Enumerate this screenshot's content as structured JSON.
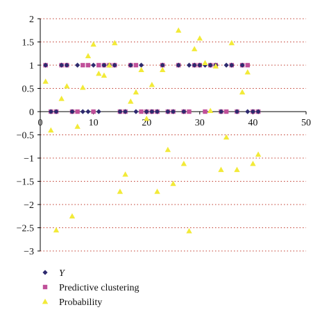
{
  "chart_data": {
    "type": "scatter",
    "title": "",
    "xlabel": "",
    "ylabel": "",
    "xlim": [
      0,
      50
    ],
    "ylim": [
      -3,
      2
    ],
    "x_ticks": [
      0,
      10,
      20,
      30,
      40,
      50
    ],
    "y_ticks": [
      2,
      1.5,
      1,
      0.5,
      0,
      -0.5,
      -1,
      -1.5,
      -2,
      -2.5,
      -3
    ],
    "x_tick_labels": [
      "0",
      "10",
      "20",
      "30",
      "40",
      "50"
    ],
    "y_tick_labels": [
      "2",
      "1.5",
      "1",
      "0.5",
      "0",
      "−0.5",
      "−1",
      "−1.5",
      "−2",
      "−2.5",
      "−3"
    ],
    "grid": "horizontal dotted red",
    "legend_position": "bottom-left",
    "series": [
      {
        "name": "Y",
        "marker": "diamond",
        "color": "#2e2a6e",
        "points": [
          [
            1,
            1
          ],
          [
            2,
            0
          ],
          [
            3,
            0
          ],
          [
            4,
            1
          ],
          [
            5,
            1
          ],
          [
            6,
            0
          ],
          [
            7,
            1
          ],
          [
            8,
            0
          ],
          [
            9,
            0
          ],
          [
            10,
            1
          ],
          [
            11,
            0
          ],
          [
            12,
            1
          ],
          [
            13,
            1
          ],
          [
            14,
            1
          ],
          [
            15,
            0
          ],
          [
            16,
            0
          ],
          [
            17,
            1
          ],
          [
            18,
            0
          ],
          [
            19,
            1
          ],
          [
            20,
            0
          ],
          [
            21,
            0
          ],
          [
            22,
            0
          ],
          [
            23,
            1
          ],
          [
            24,
            0
          ],
          [
            25,
            0
          ],
          [
            26,
            1
          ],
          [
            27,
            0
          ],
          [
            28,
            1
          ],
          [
            29,
            1
          ],
          [
            30,
            1
          ],
          [
            31,
            1
          ],
          [
            32,
            1
          ],
          [
            33,
            1
          ],
          [
            34,
            0
          ],
          [
            35,
            1
          ],
          [
            36,
            1
          ],
          [
            37,
            0
          ],
          [
            38,
            1
          ],
          [
            39,
            0
          ],
          [
            40,
            0
          ],
          [
            41,
            0
          ]
        ]
      },
      {
        "name": "Predictive clustering",
        "marker": "square",
        "color": "#c0509a",
        "points": [
          [
            1,
            1
          ],
          [
            2,
            0
          ],
          [
            3,
            0
          ],
          [
            4,
            1
          ],
          [
            5,
            1
          ],
          [
            6,
            0
          ],
          [
            7,
            0
          ],
          [
            8,
            1
          ],
          [
            9,
            1
          ],
          [
            10,
            0
          ],
          [
            11,
            1
          ],
          [
            12,
            1
          ],
          [
            13,
            1
          ],
          [
            14,
            1
          ],
          [
            15,
            0
          ],
          [
            16,
            0
          ],
          [
            17,
            1
          ],
          [
            18,
            1
          ],
          [
            19,
            0
          ],
          [
            20,
            0
          ],
          [
            21,
            0
          ],
          [
            22,
            0
          ],
          [
            23,
            1
          ],
          [
            24,
            0
          ],
          [
            25,
            0
          ],
          [
            26,
            1
          ],
          [
            27,
            0
          ],
          [
            28,
            0
          ],
          [
            29,
            1
          ],
          [
            30,
            1
          ],
          [
            31,
            0
          ],
          [
            32,
            1
          ],
          [
            33,
            1
          ],
          [
            34,
            0
          ],
          [
            35,
            0
          ],
          [
            36,
            1
          ],
          [
            37,
            0
          ],
          [
            38,
            1
          ],
          [
            39,
            1
          ],
          [
            40,
            0
          ],
          [
            41,
            0
          ]
        ]
      },
      {
        "name": "Probability",
        "marker": "triangle",
        "color": "#f2ea38",
        "points": [
          [
            1,
            0.65
          ],
          [
            2,
            -0.4
          ],
          [
            3,
            -2.55
          ],
          [
            4,
            0.28
          ],
          [
            5,
            0.55
          ],
          [
            6,
            -2.25
          ],
          [
            7,
            -0.32
          ],
          [
            8,
            0.52
          ],
          [
            9,
            1.2
          ],
          [
            10,
            1.45
          ],
          [
            11,
            0.82
          ],
          [
            12,
            0.78
          ],
          [
            13,
            1.0
          ],
          [
            14,
            1.48
          ],
          [
            15,
            -1.72
          ],
          [
            16,
            -1.35
          ],
          [
            17,
            0.22
          ],
          [
            18,
            0.42
          ],
          [
            19,
            0.9
          ],
          [
            20,
            -0.15
          ],
          [
            21,
            0.58
          ],
          [
            22,
            -1.72
          ],
          [
            23,
            0.9
          ],
          [
            24,
            -0.82
          ],
          [
            25,
            -1.55
          ],
          [
            26,
            1.75
          ],
          [
            27,
            -1.12
          ],
          [
            28,
            -2.57
          ],
          [
            29,
            1.35
          ],
          [
            30,
            1.58
          ],
          [
            31,
            1.05
          ],
          [
            32,
            0.02
          ],
          [
            33,
            0.98
          ],
          [
            34,
            -1.25
          ],
          [
            35,
            -0.55
          ],
          [
            36,
            1.48
          ],
          [
            37,
            -1.25
          ],
          [
            38,
            0.42
          ],
          [
            39,
            0.85
          ],
          [
            40,
            -1.12
          ],
          [
            41,
            -0.92
          ]
        ]
      }
    ]
  }
}
